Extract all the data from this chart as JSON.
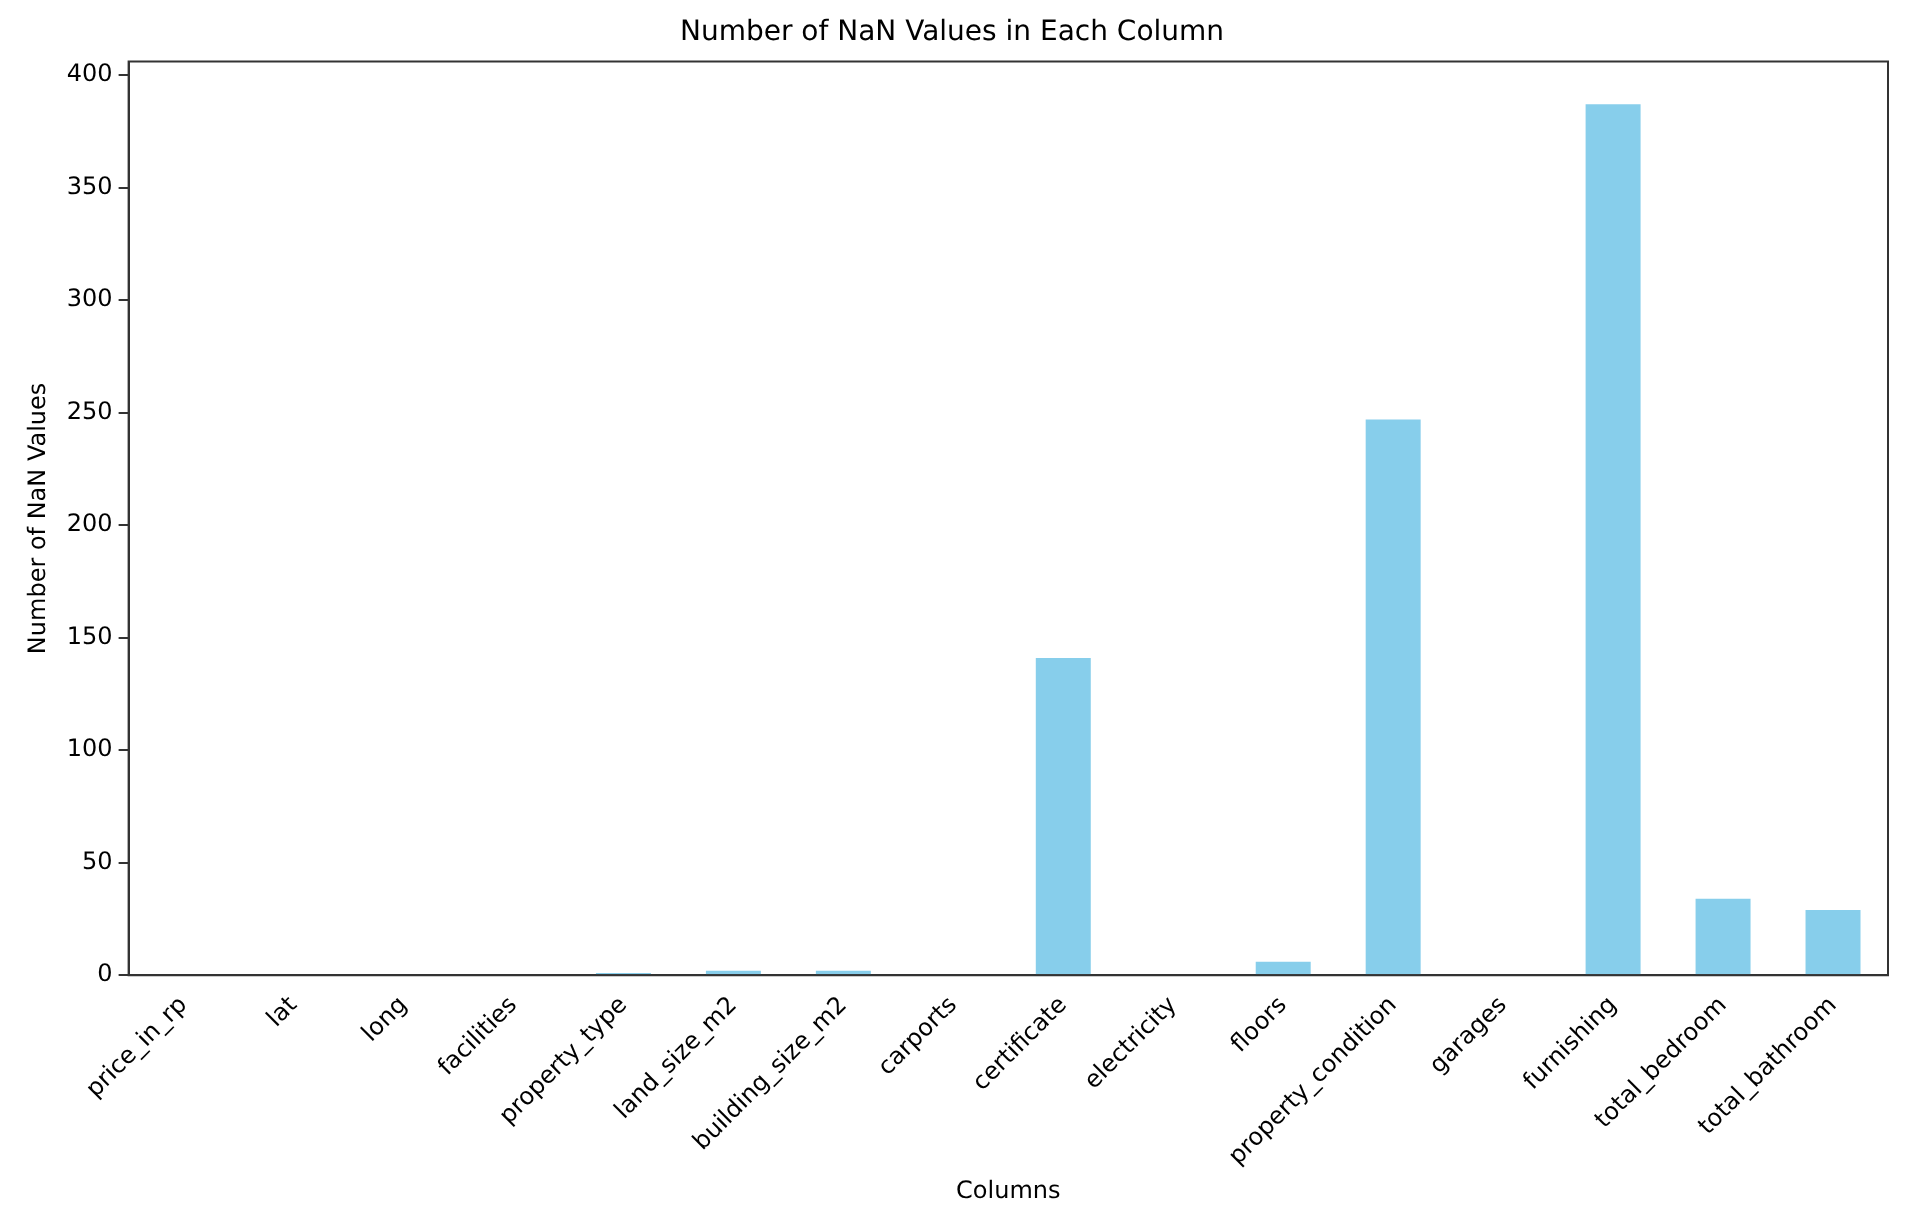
{
  "chart_data": {
    "type": "bar",
    "title": "Number of NaN Values in Each Column",
    "xlabel": "Columns",
    "ylabel": "Number of NaN Values",
    "categories": [
      "price_in_rp",
      "lat",
      "long",
      "facilities",
      "property_type",
      "land_size_m2",
      "building_size_m2",
      "carports",
      "certificate",
      "electricity",
      "floors",
      "property_condition",
      "garages",
      "furnishing",
      "total_bedroom",
      "total_bathroom"
    ],
    "values": [
      0,
      0,
      0,
      0,
      1,
      2,
      2,
      0,
      141,
      0,
      6,
      247,
      0,
      387,
      34,
      29
    ],
    "color": "#87ceeb",
    "ylim": [
      0,
      406
    ],
    "yticks": [
      0,
      50,
      100,
      150,
      200,
      250,
      300,
      350,
      400
    ],
    "grid": false,
    "legend": false
  }
}
